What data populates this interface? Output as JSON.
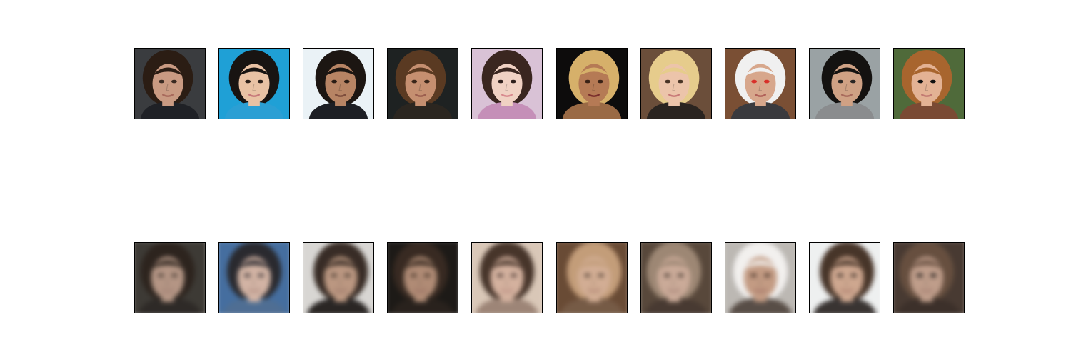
{
  "figure": {
    "rows": [
      {
        "kind": "original",
        "panels": [
          {
            "bg": "#3a3c3f",
            "hair": "#2b1d14",
            "skin": "#c99a82",
            "shirt": "#1f2126",
            "eyes": "#3a2a22",
            "lips": "#a86a5c"
          },
          {
            "bg": "#1fa0d6",
            "hair": "#181412",
            "skin": "#e9c2a4",
            "shirt": "#2b9fd4",
            "eyes": "#2a1e18",
            "lips": "#c7797a"
          },
          {
            "bg": "#eaf2f6",
            "hair": "#1c1612",
            "skin": "#b78464",
            "shirt": "#1d1f24",
            "eyes": "#2a1d15",
            "lips": "#7d4d3c"
          },
          {
            "bg": "#1e2222",
            "hair": "#5a3a22",
            "skin": "#c58f70",
            "shirt": "#2b2620",
            "eyes": "#3a2619",
            "lips": "#9b5e4e"
          },
          {
            "bg": "#d9c2d6",
            "hair": "#3a2620",
            "skin": "#f0d1c3",
            "shirt": "#c58fb8",
            "eyes": "#2e1f1c",
            "lips": "#d88a8f"
          },
          {
            "bg": "#0d0c0c",
            "hair": "#d6b06a",
            "skin": "#b57a55",
            "shirt": "#9a6a45",
            "eyes": "#3a2216",
            "lips": "#7a2e2c"
          },
          {
            "bg": "#6b4e3a",
            "hair": "#e6cc8c",
            "skin": "#ecc4aa",
            "shirt": "#2a2420",
            "eyes": "#4a3426",
            "lips": "#c87a78"
          },
          {
            "bg": "#7a4f34",
            "hair": "#f0f0f0",
            "skin": "#d7a78c",
            "shirt": "#3a3a3e",
            "eyes": "#d8302a",
            "lips": "#b06058"
          },
          {
            "bg": "#9aa2a4",
            "hair": "#141210",
            "skin": "#cfa184",
            "shirt": "#8a8c8e",
            "eyes": "#2a2624",
            "lips": "#a86a5c"
          },
          {
            "bg": "#4f6a3a",
            "hair": "#a8652e",
            "skin": "#e3b294",
            "shirt": "#7a4a34",
            "eyes": "#101010",
            "lips": "#c27a72"
          }
        ]
      },
      {
        "kind": "reconstruction",
        "panels": [
          {
            "bg": "#3e3a34",
            "hair": "#2e241d",
            "skin": "#b89480",
            "shirt": "#2f2a26",
            "eyes": "#4a3a32",
            "lips": "#a47a6c"
          },
          {
            "bg": "#3f6fa8",
            "hair": "#2a2a30",
            "skin": "#d6b2a0",
            "shirt": "#4a6f9a",
            "eyes": "#3a3236",
            "lips": "#b08278"
          },
          {
            "bg": "#d8d6d2",
            "hair": "#3a2c24",
            "skin": "#c0967c",
            "shirt": "#2a2624",
            "eyes": "#4a3a30",
            "lips": "#9a7060"
          },
          {
            "bg": "#1e1a16",
            "hair": "#3a2a20",
            "skin": "#b58a70",
            "shirt": "#2a221c",
            "eyes": "#4a3428",
            "lips": "#9a6a5a"
          },
          {
            "bg": "#dcc6b4",
            "hair": "#4a3428",
            "skin": "#d9b09a",
            "shirt": "#a08474",
            "eyes": "#4a3630",
            "lips": "#b88478"
          },
          {
            "bg": "#6e4a30",
            "hair": "#c99c72",
            "skin": "#d7ac8e",
            "shirt": "#7a5a42",
            "eyes": "#5a4234",
            "lips": "#b07a68"
          },
          {
            "bg": "#5a4838",
            "hair": "#a08670",
            "skin": "#cfa994",
            "shirt": "#4a3a30",
            "eyes": "#4a3a30",
            "lips": "#a47a6c"
          },
          {
            "bg": "#bdb8b2",
            "hair": "#f2f0ee",
            "skin": "#c99a7e",
            "shirt": "#5a4e46",
            "eyes": "#4a3428",
            "lips": "#a0685a"
          },
          {
            "bg": "#eef0f0",
            "hair": "#4a3426",
            "skin": "#d4a68a",
            "shirt": "#3a3432",
            "eyes": "#3a2c24",
            "lips": "#a87060"
          },
          {
            "bg": "#4a3a30",
            "hair": "#6a4e3c",
            "skin": "#c49c86",
            "shirt": "#3e3028",
            "eyes": "#141212",
            "lips": "#a07466"
          }
        ]
      }
    ]
  }
}
